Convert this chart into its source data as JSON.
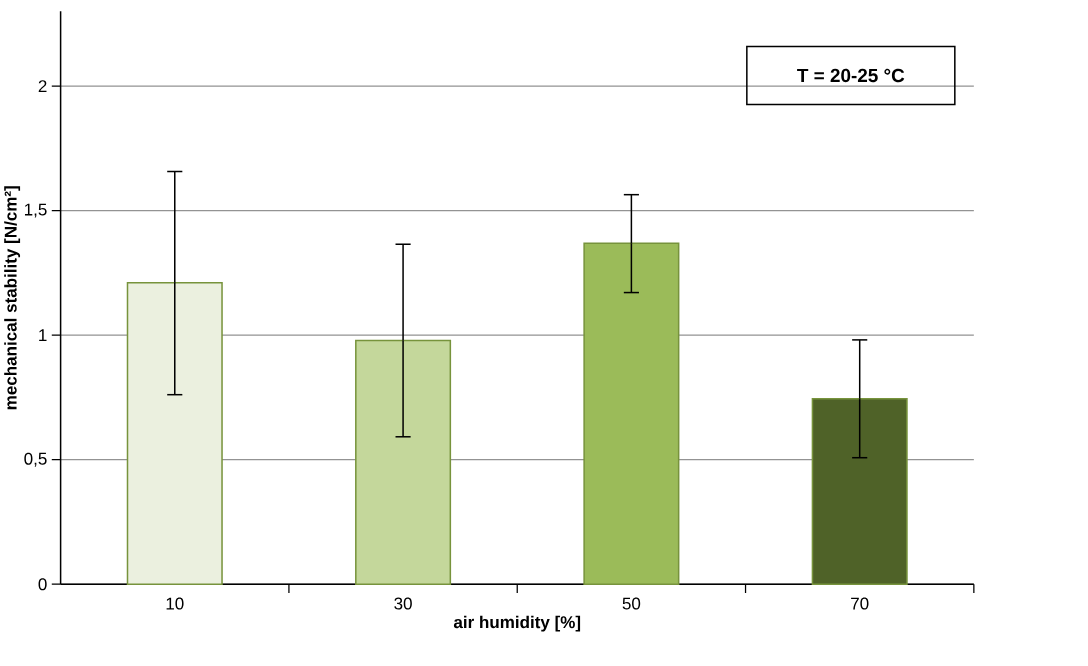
{
  "chart_data": {
    "type": "bar",
    "xlabel": "air humidity [%]",
    "ylabel": "mechanical stability [N/cm²]",
    "categories": [
      "10",
      "30",
      "50",
      "70"
    ],
    "values": [
      1.21,
      0.979,
      1.369,
      0.745
    ],
    "colors": [
      "#ebf0df",
      "#c4d79b",
      "#9bbb59",
      "#4f6228"
    ],
    "errors": [
      [
        0.761,
        1.657
      ],
      [
        0.592,
        1.365
      ],
      [
        1.171,
        1.564
      ],
      [
        0.508,
        0.981
      ]
    ],
    "ylim": [
      0,
      2.3
    ],
    "yticks": [
      0,
      {
        "value": 0.5,
        "label": "0,5"
      },
      1,
      {
        "value": 1.5,
        "label": "1,5"
      },
      2
    ],
    "grid": "y",
    "annotations": [
      "T = 20-25 °C"
    ]
  }
}
